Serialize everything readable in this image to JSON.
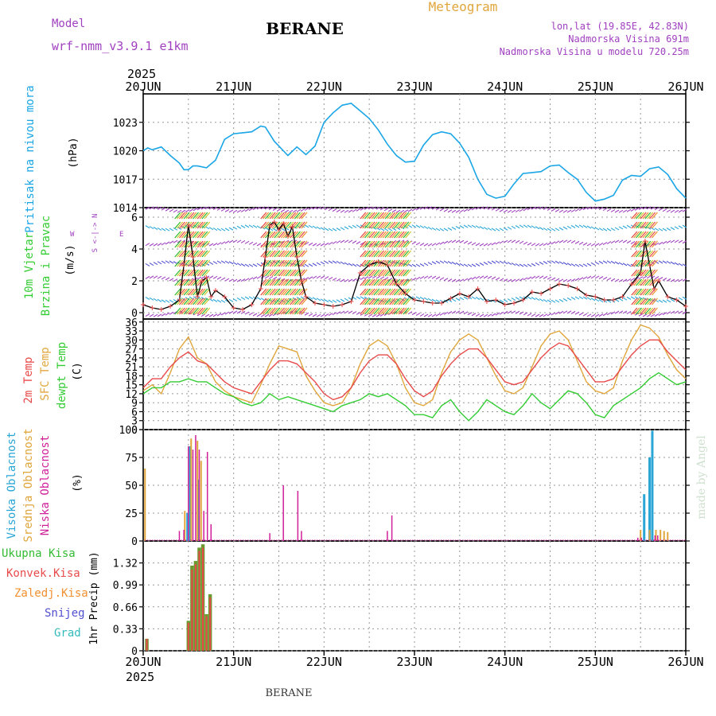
{
  "header": {
    "model_label": "Model",
    "model_name": "wrf-nmm_v3.9.1 e1km",
    "station": "BERANE",
    "meteogram": "Meteogram",
    "lonlat": "lon,lat (19.85E, 42.83N)",
    "elevation": "Nadmorska Visina 691m",
    "model_elevation": "Nadmorska Visina u modelu 720.25m",
    "year_top": "2025",
    "year_bottom": "2025",
    "footer_station": "BERANE",
    "credit": "made by Angel"
  },
  "colors": {
    "pressure": "#1aa6e6",
    "red_temp": "#e84a4a",
    "sfc_temp": "#e0a63c",
    "dew": "#33cc33",
    "violet": "#a040c0",
    "magenta": "#d0209a",
    "cyan": "#2aa6d6",
    "orange": "#f09030",
    "green": "#33bb33",
    "blue": "#5050d0",
    "teal": "#33bbbb",
    "precip_green": "#6a9a30"
  },
  "x_axis": {
    "ticks": [
      "20JUN",
      "21JUN",
      "22JUN",
      "23JUN",
      "24JUN",
      "25JUN",
      "26JUN"
    ]
  },
  "panels": {
    "pressure": {
      "label": "Pritisak na nivou mora",
      "unit": "(hPa)"
    },
    "wind": {
      "label1": "10m Vjetar",
      "label2": "Brzina i Pravac",
      "unit": "(m/s)",
      "compass_ns": "S <-|-> N",
      "compass_w": "W",
      "compass_e": "E"
    },
    "temp": {
      "label_red": "2m Temp",
      "label_sfc": "SFC Temp",
      "label_dew": "dewpt Temp",
      "unit": "(C)"
    },
    "cloud": {
      "label_high": "Visoka Oblacnost",
      "label_mid": "Srednja Oblacnost",
      "label_low": "Niska Oblacnost",
      "unit": "(%)"
    },
    "precip": {
      "unit": "1hr Precip (mm)",
      "legend": [
        {
          "name": "Ukupna Kisa",
          "color": "#33bb33"
        },
        {
          "name": "Konvek.Kisa",
          "color": "#e84a4a"
        },
        {
          "name": "Zaledj.Kisa",
          "color": "#f09030"
        },
        {
          "name": "Snijeg",
          "color": "#5050d0"
        },
        {
          "name": "Grad",
          "color": "#33bbbb"
        }
      ]
    }
  },
  "chart_data": [
    {
      "type": "line",
      "ylabel": "Pritisak na nivou mora (hPa)",
      "ylim": [
        1014,
        1026
      ],
      "yticks": [
        1014,
        1017,
        1020,
        1023
      ],
      "x_days": [
        0,
        0.05,
        0.1,
        0.2,
        0.3,
        0.4,
        0.45,
        0.5,
        0.55,
        0.6,
        0.7,
        0.8,
        0.9,
        1.0,
        1.1,
        1.2,
        1.3,
        1.35,
        1.45,
        1.55,
        1.6,
        1.7,
        1.8,
        1.9,
        2.0,
        2.1,
        2.2,
        2.3,
        2.4,
        2.5,
        2.6,
        2.7,
        2.8,
        2.9,
        3.0,
        3.1,
        3.2,
        3.3,
        3.4,
        3.5,
        3.6,
        3.7,
        3.8,
        3.9,
        4.0,
        4.1,
        4.2,
        4.3,
        4.4,
        4.5,
        4.6,
        4.7,
        4.8,
        4.9,
        5.0,
        5.1,
        5.2,
        5.3,
        5.4,
        5.5,
        5.6,
        5.7,
        5.8,
        5.9,
        6.0
      ],
      "series": [
        {
          "values": [
            1020.0,
            1020.3,
            1020.1,
            1020.4,
            1019.5,
            1018.7,
            1018.0,
            1018.0,
            1018.4,
            1018.4,
            1018.2,
            1019.0,
            1021.2,
            1021.8,
            1021.9,
            1022.0,
            1022.6,
            1022.5,
            1021.0,
            1020.0,
            1019.5,
            1020.4,
            1019.6,
            1020.5,
            1023.0,
            1024.0,
            1024.8,
            1025.0,
            1024.2,
            1023.4,
            1022.2,
            1020.7,
            1019.5,
            1018.8,
            1018.9,
            1020.6,
            1021.7,
            1022.0,
            1021.8,
            1020.8,
            1019.3,
            1017.0,
            1015.4,
            1015.0,
            1015.2,
            1016.5,
            1017.6,
            1017.7,
            1017.8,
            1018.4,
            1018.5,
            1017.7,
            1017.0,
            1015.6,
            1014.7,
            1014.9,
            1015.3,
            1016.9,
            1017.4,
            1017.3,
            1018.1,
            1018.3,
            1017.5,
            1016.0,
            1015.0
          ]
        }
      ]
    },
    {
      "type": "line",
      "ylabel": "10m Vjetar Brzina i Pravac (m/s)",
      "ylim": [
        -0.4,
        6.6
      ],
      "yticks": [
        0,
        2,
        4,
        6
      ],
      "x_days": [
        0,
        0.1,
        0.2,
        0.3,
        0.4,
        0.45,
        0.5,
        0.55,
        0.6,
        0.65,
        0.7,
        0.75,
        0.8,
        0.9,
        1.0,
        1.1,
        1.2,
        1.3,
        1.35,
        1.4,
        1.45,
        1.5,
        1.55,
        1.6,
        1.65,
        1.7,
        1.75,
        1.8,
        1.9,
        2.0,
        2.1,
        2.2,
        2.3,
        2.4,
        2.5,
        2.6,
        2.7,
        2.8,
        2.9,
        3.0,
        3.1,
        3.2,
        3.3,
        3.4,
        3.5,
        3.6,
        3.7,
        3.8,
        3.9,
        4.0,
        4.1,
        4.2,
        4.3,
        4.4,
        4.5,
        4.6,
        4.7,
        4.8,
        4.9,
        5.0,
        5.1,
        5.2,
        5.3,
        5.4,
        5.5,
        5.55,
        5.6,
        5.65,
        5.7,
        5.8,
        5.9,
        6.0
      ],
      "series": [
        {
          "name": "",
          "values": [
            0.5,
            0.3,
            0.2,
            0.4,
            0.8,
            3.0,
            5.5,
            3.5,
            1.0,
            2.0,
            2.2,
            1.0,
            1.4,
            1.0,
            0.3,
            0.2,
            0.5,
            1.5,
            3.5,
            5.5,
            5.7,
            5.2,
            5.6,
            4.8,
            5.4,
            3.5,
            2.0,
            1.0,
            0.6,
            0.5,
            0.4,
            0.5,
            0.7,
            2.5,
            3.0,
            3.2,
            3.0,
            1.8,
            1.2,
            0.8,
            0.7,
            0.6,
            0.6,
            0.9,
            1.2,
            1.0,
            1.5,
            0.7,
            0.8,
            0.5,
            0.6,
            0.8,
            1.3,
            1.2,
            1.5,
            1.8,
            1.7,
            1.5,
            1.1,
            1.0,
            0.8,
            0.8,
            1.0,
            1.8,
            2.5,
            4.5,
            3.0,
            1.5,
            2.0,
            1.0,
            0.8,
            0.4
          ]
        }
      ]
    },
    {
      "type": "line",
      "ylabel": "Temp (C)",
      "ylim": [
        0,
        37
      ],
      "yticks": [
        0,
        3,
        6,
        9,
        12,
        15,
        18,
        21,
        24,
        27,
        30,
        33,
        36
      ],
      "x_days": [
        0,
        0.1,
        0.2,
        0.3,
        0.4,
        0.5,
        0.6,
        0.7,
        0.8,
        0.9,
        1.0,
        1.1,
        1.2,
        1.3,
        1.4,
        1.5,
        1.6,
        1.7,
        1.8,
        1.9,
        2.0,
        2.1,
        2.2,
        2.3,
        2.4,
        2.5,
        2.6,
        2.7,
        2.8,
        2.9,
        3.0,
        3.1,
        3.2,
        3.3,
        3.4,
        3.5,
        3.6,
        3.7,
        3.8,
        3.9,
        4.0,
        4.1,
        4.2,
        4.3,
        4.4,
        4.5,
        4.6,
        4.7,
        4.8,
        4.9,
        5.0,
        5.1,
        5.2,
        5.3,
        5.4,
        5.5,
        5.6,
        5.7,
        5.8,
        5.9,
        6.0
      ],
      "series": [
        {
          "name": "2m Temp",
          "values": [
            14,
            17,
            17,
            21,
            24,
            26,
            23,
            22,
            19,
            16,
            14,
            13,
            12,
            16,
            20,
            23,
            23,
            22,
            19,
            16,
            12,
            10,
            11,
            14,
            19,
            23,
            25,
            25,
            22,
            17,
            13,
            11,
            13,
            18,
            22,
            25,
            27,
            27,
            24,
            20,
            16,
            15,
            16,
            20,
            24,
            27,
            29,
            28,
            24,
            20,
            16,
            16,
            17,
            21,
            25,
            28,
            30,
            30,
            26,
            23,
            20
          ]
        },
        {
          "name": "SFC Temp",
          "values": [
            13,
            15,
            12,
            19,
            27,
            31,
            24,
            22,
            16,
            13,
            11,
            10,
            9,
            15,
            22,
            28,
            27,
            26,
            18,
            13,
            9,
            8,
            9,
            14,
            22,
            28,
            30,
            28,
            22,
            14,
            9,
            8,
            10,
            19,
            26,
            30,
            32,
            30,
            24,
            18,
            13,
            12,
            14,
            21,
            28,
            32,
            33,
            30,
            23,
            16,
            13,
            12,
            14,
            23,
            30,
            35,
            34,
            31,
            25,
            20,
            17
          ]
        },
        {
          "name": "dewpt Temp",
          "values": [
            12,
            14,
            14,
            16,
            16,
            17,
            16,
            16,
            14,
            12,
            11,
            9,
            8,
            9,
            12,
            10,
            11,
            10,
            9,
            8,
            7,
            6,
            8,
            9,
            10,
            12,
            11,
            12,
            10,
            8,
            5,
            5,
            4,
            8,
            10,
            6,
            3,
            6,
            10,
            8,
            6,
            5,
            8,
            12,
            9,
            7,
            10,
            13,
            12,
            9,
            5,
            4,
            8,
            10,
            12,
            14,
            17,
            19,
            17,
            15,
            16
          ]
        }
      ]
    },
    {
      "type": "bar",
      "ylabel": "Oblacnost (%)",
      "ylim": [
        0,
        100
      ],
      "yticks": [
        0,
        25,
        50,
        75,
        100
      ],
      "series": [
        {
          "name": "Visoka Oblacnost",
          "x_days": [
            0.49,
            0.52,
            0.61,
            5.54,
            5.6,
            5.63
          ],
          "values": [
            25,
            85,
            55,
            42,
            75,
            99
          ]
        },
        {
          "name": "Srednja Oblacnost",
          "x_days": [
            0.02,
            0.46,
            0.53,
            0.6,
            0.64,
            5.5,
            5.6,
            5.67,
            5.72,
            5.76,
            5.8
          ],
          "values": [
            65,
            27,
            92,
            90,
            72,
            10,
            10,
            10,
            10,
            9,
            8
          ]
        },
        {
          "name": "Niska Oblacnost",
          "x_days": [
            0.4,
            0.45,
            0.5,
            0.55,
            0.58,
            0.62,
            0.67,
            0.71,
            0.75,
            1.4,
            1.55,
            1.71,
            1.75,
            2.7,
            2.75,
            5.47,
            5.51,
            5.66,
            5.69
          ],
          "values": [
            9,
            10,
            85,
            82,
            95,
            82,
            27,
            80,
            15,
            7,
            50,
            45,
            9,
            9,
            23,
            3,
            3,
            5,
            5
          ]
        }
      ]
    },
    {
      "type": "bar",
      "ylabel": "1hr Precip (mm)",
      "ylim": [
        0,
        1.65
      ],
      "yticks": [
        0,
        0.33,
        0.66,
        0.99,
        1.32
      ],
      "series": [
        {
          "name": "Ukupna Kisa",
          "x_days": [
            0.04,
            0.5,
            0.54,
            0.58,
            0.62,
            0.66,
            0.7,
            0.74
          ],
          "values": [
            0.18,
            0.45,
            1.28,
            1.35,
            1.55,
            1.6,
            0.55,
            0.85
          ]
        },
        {
          "name": "Konvek.Kisa",
          "x_days": [
            0.04,
            0.5,
            0.54,
            0.58,
            0.62,
            0.66,
            0.7,
            0.74
          ],
          "values": [
            0.18,
            0.42,
            1.22,
            1.3,
            1.5,
            1.55,
            0.52,
            0.8
          ]
        }
      ]
    }
  ]
}
